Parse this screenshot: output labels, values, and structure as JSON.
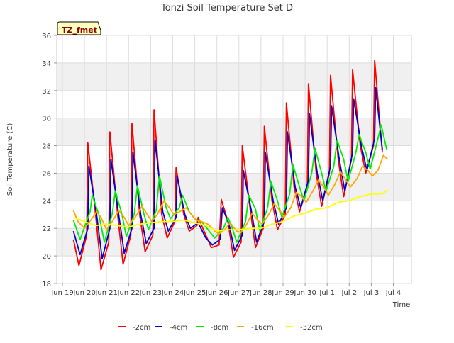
{
  "chart_data": {
    "type": "line",
    "title": "Tonzi Soil Temperature Set D",
    "badge": "TZ_fmet",
    "xlabel": "Time",
    "ylabel": "Soil Temperature (C)",
    "ylim": [
      18,
      36
    ],
    "yticks": [
      18,
      20,
      22,
      24,
      26,
      28,
      30,
      32,
      34,
      36
    ],
    "xlim": [
      0,
      16
    ],
    "xticks": [
      {
        "v": 0,
        "label": "Jun 19"
      },
      {
        "v": 1,
        "label": "Jun 20"
      },
      {
        "v": 2,
        "label": "Jun 21"
      },
      {
        "v": 3,
        "label": "Jun 22"
      },
      {
        "v": 4,
        "label": "Jun 23"
      },
      {
        "v": 5,
        "label": "Jun 24"
      },
      {
        "v": 6,
        "label": "Jun 25"
      },
      {
        "v": 7,
        "label": "Jun 26"
      },
      {
        "v": 8,
        "label": "Jun 27"
      },
      {
        "v": 9,
        "label": "Jun 28"
      },
      {
        "v": 10,
        "label": "Jun 29"
      },
      {
        "v": 11,
        "label": "Jun 30"
      },
      {
        "v": 12,
        "label": "Jul 1"
      },
      {
        "v": 13,
        "label": "Jul 2"
      },
      {
        "v": 14,
        "label": "Jul 3"
      },
      {
        "v": 15,
        "label": "Jul 4"
      }
    ],
    "grid": true,
    "legend_position": "bottom",
    "series": [
      {
        "name": "-2cm",
        "color": "#ff0000",
        "points": [
          [
            0.5,
            21.2
          ],
          [
            0.75,
            19.3
          ],
          [
            1.1,
            21.5
          ],
          [
            1.15,
            28.2
          ],
          [
            1.5,
            23.0
          ],
          [
            1.75,
            19.0
          ],
          [
            2.1,
            21.0
          ],
          [
            2.15,
            29.0
          ],
          [
            2.5,
            23.0
          ],
          [
            2.75,
            19.4
          ],
          [
            3.1,
            21.5
          ],
          [
            3.15,
            29.6
          ],
          [
            3.5,
            23.0
          ],
          [
            3.75,
            20.3
          ],
          [
            4.1,
            21.5
          ],
          [
            4.15,
            30.6
          ],
          [
            4.5,
            23.0
          ],
          [
            4.75,
            21.3
          ],
          [
            5.1,
            22.5
          ],
          [
            5.15,
            26.4
          ],
          [
            5.5,
            23.0
          ],
          [
            5.75,
            21.8
          ],
          [
            6.1,
            22.2
          ],
          [
            6.15,
            22.8
          ],
          [
            6.5,
            21.5
          ],
          [
            6.75,
            20.6
          ],
          [
            7.1,
            20.8
          ],
          [
            7.2,
            24.1
          ],
          [
            7.5,
            22.5
          ],
          [
            7.75,
            19.9
          ],
          [
            8.1,
            21.0
          ],
          [
            8.15,
            28.0
          ],
          [
            8.5,
            23.5
          ],
          [
            8.75,
            20.6
          ],
          [
            9.1,
            22.0
          ],
          [
            9.15,
            29.4
          ],
          [
            9.5,
            24.0
          ],
          [
            9.75,
            21.9
          ],
          [
            10.1,
            23.0
          ],
          [
            10.15,
            31.1
          ],
          [
            10.5,
            25.0
          ],
          [
            10.75,
            23.2
          ],
          [
            11.1,
            25.0
          ],
          [
            11.15,
            32.5
          ],
          [
            11.5,
            26.0
          ],
          [
            11.75,
            23.6
          ],
          [
            12.1,
            26.0
          ],
          [
            12.15,
            33.1
          ],
          [
            12.5,
            27.0
          ],
          [
            12.75,
            24.3
          ],
          [
            13.1,
            27.0
          ],
          [
            13.15,
            33.5
          ],
          [
            13.5,
            28.0
          ],
          [
            13.75,
            26.0
          ],
          [
            14.1,
            28.0
          ],
          [
            14.15,
            34.2
          ],
          [
            14.5,
            27.5
          ]
        ]
      },
      {
        "name": "-4cm",
        "color": "#0000cc",
        "points": [
          [
            0.5,
            21.8
          ],
          [
            0.8,
            20.1
          ],
          [
            1.15,
            22.0
          ],
          [
            1.2,
            26.5
          ],
          [
            1.55,
            23.0
          ],
          [
            1.8,
            19.8
          ],
          [
            2.15,
            22.0
          ],
          [
            2.2,
            27.0
          ],
          [
            2.55,
            23.0
          ],
          [
            2.8,
            20.2
          ],
          [
            3.15,
            22.0
          ],
          [
            3.2,
            27.5
          ],
          [
            3.55,
            23.0
          ],
          [
            3.8,
            20.9
          ],
          [
            4.15,
            22.0
          ],
          [
            4.2,
            28.4
          ],
          [
            4.55,
            23.2
          ],
          [
            4.8,
            21.8
          ],
          [
            5.15,
            22.8
          ],
          [
            5.2,
            25.8
          ],
          [
            5.55,
            23.0
          ],
          [
            5.8,
            22.0
          ],
          [
            6.15,
            22.4
          ],
          [
            6.5,
            21.3
          ],
          [
            6.8,
            20.8
          ],
          [
            7.15,
            21.2
          ],
          [
            7.25,
            23.5
          ],
          [
            7.55,
            22.3
          ],
          [
            7.8,
            20.4
          ],
          [
            8.15,
            21.5
          ],
          [
            8.2,
            26.2
          ],
          [
            8.55,
            23.4
          ],
          [
            8.8,
            21.0
          ],
          [
            9.15,
            22.5
          ],
          [
            9.2,
            27.5
          ],
          [
            9.55,
            24.0
          ],
          [
            9.8,
            22.3
          ],
          [
            10.15,
            23.5
          ],
          [
            10.2,
            29.0
          ],
          [
            10.55,
            25.0
          ],
          [
            10.8,
            23.5
          ],
          [
            11.15,
            25.5
          ],
          [
            11.2,
            30.3
          ],
          [
            11.55,
            26.0
          ],
          [
            11.8,
            24.0
          ],
          [
            12.15,
            26.5
          ],
          [
            12.2,
            30.9
          ],
          [
            12.55,
            27.0
          ],
          [
            12.8,
            24.7
          ],
          [
            13.15,
            27.5
          ],
          [
            13.2,
            31.4
          ],
          [
            13.55,
            28.0
          ],
          [
            13.8,
            26.2
          ],
          [
            14.15,
            28.5
          ],
          [
            14.2,
            32.2
          ],
          [
            14.5,
            27.7
          ]
        ]
      },
      {
        "name": "-8cm",
        "color": "#00ee00",
        "points": [
          [
            0.5,
            22.6
          ],
          [
            0.8,
            21.2
          ],
          [
            1.25,
            23.2
          ],
          [
            1.35,
            24.4
          ],
          [
            1.65,
            23.0
          ],
          [
            1.9,
            21.0
          ],
          [
            2.25,
            23.0
          ],
          [
            2.4,
            24.7
          ],
          [
            2.7,
            23.0
          ],
          [
            2.9,
            21.4
          ],
          [
            3.25,
            23.0
          ],
          [
            3.4,
            25.1
          ],
          [
            3.7,
            23.0
          ],
          [
            3.9,
            21.9
          ],
          [
            4.25,
            23.3
          ],
          [
            4.4,
            25.8
          ],
          [
            4.7,
            23.5
          ],
          [
            4.9,
            22.7
          ],
          [
            5.3,
            23.5
          ],
          [
            5.45,
            24.4
          ],
          [
            5.75,
            23.2
          ],
          [
            6.0,
            22.7
          ],
          [
            6.35,
            22.4
          ],
          [
            6.9,
            21.3
          ],
          [
            7.3,
            22.0
          ],
          [
            7.5,
            22.8
          ],
          [
            7.7,
            22.0
          ],
          [
            7.9,
            21.0
          ],
          [
            8.3,
            22.5
          ],
          [
            8.45,
            24.4
          ],
          [
            8.75,
            23.4
          ],
          [
            8.95,
            21.8
          ],
          [
            9.3,
            23.5
          ],
          [
            9.45,
            25.4
          ],
          [
            9.75,
            24.0
          ],
          [
            9.95,
            22.8
          ],
          [
            10.3,
            24.5
          ],
          [
            10.45,
            26.6
          ],
          [
            10.75,
            25.0
          ],
          [
            10.95,
            24.0
          ],
          [
            11.3,
            26.0
          ],
          [
            11.45,
            27.8
          ],
          [
            11.75,
            26.0
          ],
          [
            11.95,
            24.7
          ],
          [
            12.3,
            26.5
          ],
          [
            12.45,
            28.4
          ],
          [
            12.75,
            27.0
          ],
          [
            12.95,
            25.4
          ],
          [
            13.3,
            27.5
          ],
          [
            13.45,
            28.8
          ],
          [
            13.75,
            27.5
          ],
          [
            13.95,
            26.3
          ],
          [
            14.3,
            28.5
          ],
          [
            14.45,
            29.5
          ],
          [
            14.7,
            27.7
          ]
        ]
      },
      {
        "name": "-16cm",
        "color": "#ffa500",
        "points": [
          [
            0.5,
            23.3
          ],
          [
            0.7,
            22.5
          ],
          [
            1.0,
            22.0
          ],
          [
            1.2,
            22.4
          ],
          [
            1.55,
            23.2
          ],
          [
            1.75,
            22.8
          ],
          [
            2.0,
            21.9
          ],
          [
            2.3,
            22.6
          ],
          [
            2.55,
            23.3
          ],
          [
            2.8,
            22.8
          ],
          [
            3.0,
            22.2
          ],
          [
            3.3,
            22.8
          ],
          [
            3.6,
            23.6
          ],
          [
            3.85,
            23.0
          ],
          [
            4.05,
            22.5
          ],
          [
            4.3,
            23.0
          ],
          [
            4.6,
            24.0
          ],
          [
            4.85,
            23.5
          ],
          [
            5.05,
            23.0
          ],
          [
            5.3,
            23.2
          ],
          [
            5.6,
            23.5
          ],
          [
            5.85,
            23.0
          ],
          [
            6.05,
            22.6
          ],
          [
            6.3,
            22.5
          ],
          [
            6.6,
            22.3
          ],
          [
            6.9,
            21.8
          ],
          [
            7.1,
            21.6
          ],
          [
            7.35,
            21.9
          ],
          [
            7.6,
            22.4
          ],
          [
            7.9,
            21.8
          ],
          [
            8.1,
            21.7
          ],
          [
            8.35,
            22.3
          ],
          [
            8.6,
            23.1
          ],
          [
            8.85,
            22.6
          ],
          [
            9.05,
            22.3
          ],
          [
            9.35,
            23.0
          ],
          [
            9.6,
            23.8
          ],
          [
            9.85,
            23.3
          ],
          [
            10.05,
            22.8
          ],
          [
            10.35,
            23.5
          ],
          [
            10.6,
            24.6
          ],
          [
            10.85,
            24.3
          ],
          [
            11.05,
            23.9
          ],
          [
            11.35,
            24.7
          ],
          [
            11.6,
            25.5
          ],
          [
            11.85,
            25.0
          ],
          [
            12.05,
            24.4
          ],
          [
            12.35,
            25.2
          ],
          [
            12.6,
            26.1
          ],
          [
            12.85,
            25.5
          ],
          [
            13.05,
            25.0
          ],
          [
            13.35,
            25.6
          ],
          [
            13.6,
            26.5
          ],
          [
            13.85,
            26.2
          ],
          [
            14.05,
            25.8
          ],
          [
            14.3,
            26.2
          ],
          [
            14.55,
            27.3
          ],
          [
            14.75,
            27.0
          ]
        ]
      },
      {
        "name": "-32cm",
        "color": "#ffff00",
        "points": [
          [
            0.5,
            22.8
          ],
          [
            1.0,
            22.5
          ],
          [
            1.5,
            22.2
          ],
          [
            2.0,
            22.3
          ],
          [
            2.5,
            22.2
          ],
          [
            3.0,
            22.1
          ],
          [
            3.5,
            22.3
          ],
          [
            4.0,
            22.4
          ],
          [
            4.5,
            22.5
          ],
          [
            5.0,
            22.5
          ],
          [
            5.5,
            22.6
          ],
          [
            6.0,
            22.4
          ],
          [
            6.5,
            22.2
          ],
          [
            7.0,
            21.8
          ],
          [
            7.5,
            21.9
          ],
          [
            8.0,
            21.9
          ],
          [
            8.5,
            22.0
          ],
          [
            9.0,
            22.0
          ],
          [
            9.5,
            22.3
          ],
          [
            10.0,
            22.5
          ],
          [
            10.5,
            22.9
          ],
          [
            11.0,
            23.1
          ],
          [
            11.5,
            23.4
          ],
          [
            12.0,
            23.5
          ],
          [
            12.5,
            23.9
          ],
          [
            13.0,
            24.0
          ],
          [
            13.5,
            24.3
          ],
          [
            14.0,
            24.5
          ],
          [
            14.5,
            24.5
          ],
          [
            14.75,
            24.8
          ]
        ]
      }
    ]
  }
}
